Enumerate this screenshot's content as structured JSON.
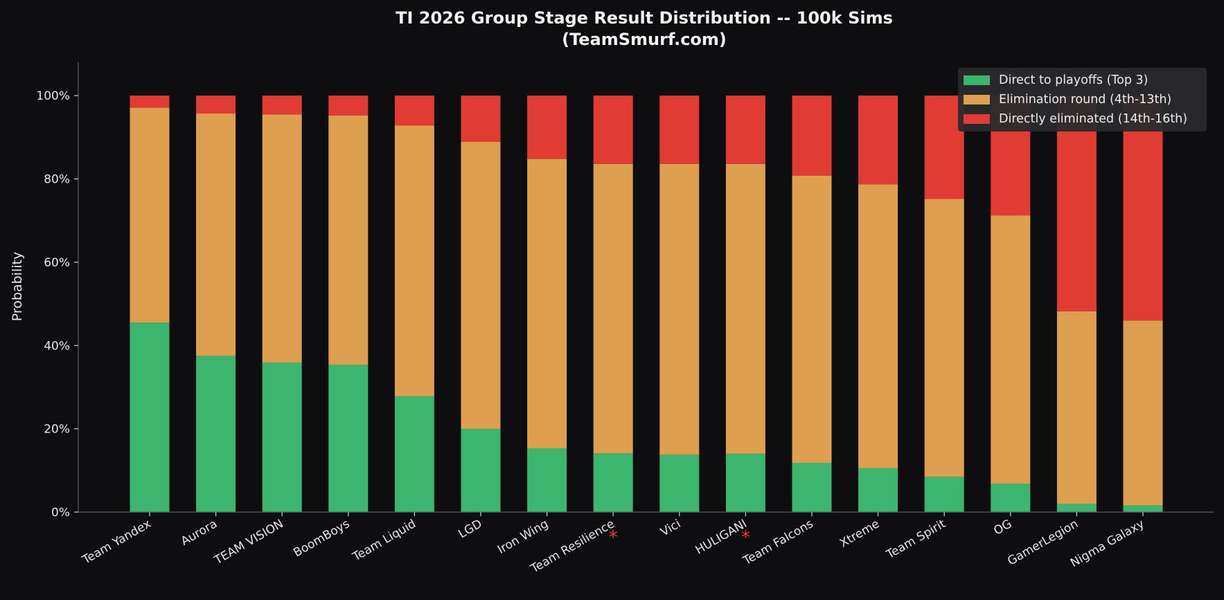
{
  "chart_data": {
    "type": "bar",
    "stacked": true,
    "title": "TI 2026 Group Stage Result Distribution -- 100k Sims",
    "subtitle": "(TeamSmurf.com)",
    "xlabel": "",
    "ylabel": "Probability",
    "ylim": [
      0,
      1.08
    ],
    "yticks": [
      0,
      0.2,
      0.4,
      0.6,
      0.8,
      1.0
    ],
    "ytick_labels": [
      "0%",
      "20%",
      "40%",
      "60%",
      "80%",
      "100%"
    ],
    "grid": false,
    "legend_position": "top-right",
    "categories": [
      "Team Yandex",
      "Aurora",
      "TEAM VISION",
      "BoomBoys",
      "Team Liquid",
      "LGD",
      "Iron Wing",
      "Team Resilience",
      "Vici",
      "HULIGANI",
      "Team Falcons",
      "Xtreme",
      "Team Spirit",
      "OG",
      "GamerLegion",
      "Nigma Galaxy"
    ],
    "marked_categories": [
      "Team Resilience",
      "HULIGANI"
    ],
    "marker_symbol": "*",
    "marker_color": "#e03c34",
    "series": [
      {
        "name": "Direct to playoffs (Top 3)",
        "color": "#3cb66e",
        "values": [
          0.455,
          0.375,
          0.359,
          0.354,
          0.278,
          0.2,
          0.153,
          0.141,
          0.138,
          0.14,
          0.118,
          0.105,
          0.085,
          0.068,
          0.02,
          0.016
        ]
      },
      {
        "name": "Elimination round (4th-13th)",
        "color": "#dea050",
        "values": [
          0.516,
          0.582,
          0.596,
          0.598,
          0.65,
          0.689,
          0.695,
          0.695,
          0.698,
          0.696,
          0.69,
          0.682,
          0.667,
          0.644,
          0.462,
          0.444
        ]
      },
      {
        "name": "Directly eliminated (14th-16th)",
        "color": "#e03c34",
        "values": [
          0.029,
          0.043,
          0.045,
          0.048,
          0.072,
          0.111,
          0.152,
          0.164,
          0.164,
          0.164,
          0.192,
          0.213,
          0.248,
          0.288,
          0.518,
          0.54
        ]
      }
    ],
    "colors": {
      "background": "#0e0e10",
      "axis": "#5a5a5a",
      "text": "#e6e6e6",
      "legend_bg": "#2a2a2c"
    }
  }
}
